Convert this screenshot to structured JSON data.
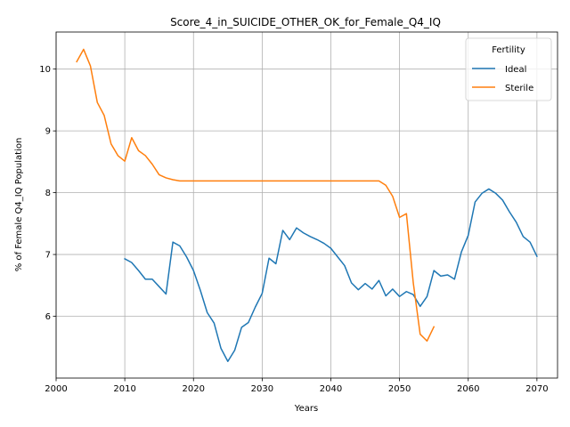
{
  "chart_data": {
    "type": "line",
    "title": "Score_4_in_SUICIDE_OTHER_OK_for_Female_Q4_IQ",
    "xlabel": "Years",
    "ylabel": "% of Female Q4_IQ Population",
    "xlim": [
      2000,
      2073
    ],
    "ylim": [
      5.0,
      10.6
    ],
    "xticks": [
      2000,
      2010,
      2020,
      2030,
      2040,
      2050,
      2060,
      2070
    ],
    "yticks": [
      6,
      7,
      8,
      9,
      10
    ],
    "grid": true,
    "legend": {
      "title": "Fertility",
      "placement": "top-right"
    },
    "series": [
      {
        "name": "Ideal",
        "color": "#1f77b4",
        "x": [
          2010,
          2011,
          2012,
          2013,
          2014,
          2015,
          2016,
          2017,
          2018,
          2019,
          2020,
          2021,
          2022,
          2023,
          2024,
          2025,
          2026,
          2027,
          2028,
          2029,
          2030,
          2031,
          2032,
          2033,
          2034,
          2035,
          2036,
          2037,
          2038,
          2039,
          2040,
          2041,
          2042,
          2043,
          2044,
          2045,
          2046,
          2047,
          2048,
          2049,
          2050,
          2051,
          2052,
          2053,
          2054,
          2055,
          2056,
          2057,
          2058,
          2059,
          2060,
          2061,
          2062,
          2063,
          2064,
          2065,
          2066,
          2067,
          2068,
          2069,
          2070
        ],
        "values": [
          6.93,
          6.87,
          6.74,
          6.6,
          6.6,
          6.48,
          6.36,
          7.2,
          7.14,
          6.96,
          6.74,
          6.42,
          6.06,
          5.89,
          5.48,
          5.27,
          5.45,
          5.82,
          5.9,
          6.15,
          6.37,
          6.94,
          6.85,
          7.39,
          7.24,
          7.43,
          7.35,
          7.29,
          7.24,
          7.18,
          7.1,
          6.96,
          6.82,
          6.54,
          6.43,
          6.53,
          6.44,
          6.58,
          6.33,
          6.44,
          6.32,
          6.4,
          6.35,
          6.16,
          6.32,
          6.74,
          6.65,
          6.67,
          6.6,
          7.04,
          7.31,
          7.85,
          7.99,
          8.06,
          7.99,
          7.88,
          7.69,
          7.52,
          7.29,
          7.2,
          6.97
        ]
      },
      {
        "name": "Sterile",
        "color": "#ff7f0e",
        "x": [
          2003,
          2004,
          2005,
          2006,
          2007,
          2008,
          2009,
          2010,
          2011,
          2012,
          2013,
          2014,
          2015,
          2016,
          2017,
          2018,
          2019,
          2020,
          2021,
          2022,
          2023,
          2024,
          2025,
          2026,
          2027,
          2028,
          2029,
          2030,
          2031,
          2032,
          2033,
          2034,
          2035,
          2036,
          2037,
          2038,
          2039,
          2040,
          2041,
          2042,
          2043,
          2044,
          2045,
          2046,
          2047,
          2048,
          2049,
          2050,
          2051,
          2052,
          2053,
          2054,
          2055
        ],
        "values": [
          10.12,
          10.32,
          10.05,
          9.46,
          9.25,
          8.79,
          8.6,
          8.51,
          8.89,
          8.68,
          8.6,
          8.46,
          8.29,
          8.24,
          8.21,
          8.19,
          8.19,
          8.19,
          8.19,
          8.19,
          8.19,
          8.19,
          8.19,
          8.19,
          8.19,
          8.19,
          8.19,
          8.19,
          8.19,
          8.19,
          8.19,
          8.19,
          8.19,
          8.19,
          8.19,
          8.19,
          8.19,
          8.19,
          8.19,
          8.19,
          8.19,
          8.19,
          8.19,
          8.19,
          8.19,
          8.12,
          7.94,
          7.6,
          7.66,
          6.54,
          5.71,
          5.6,
          5.83
        ]
      }
    ]
  }
}
